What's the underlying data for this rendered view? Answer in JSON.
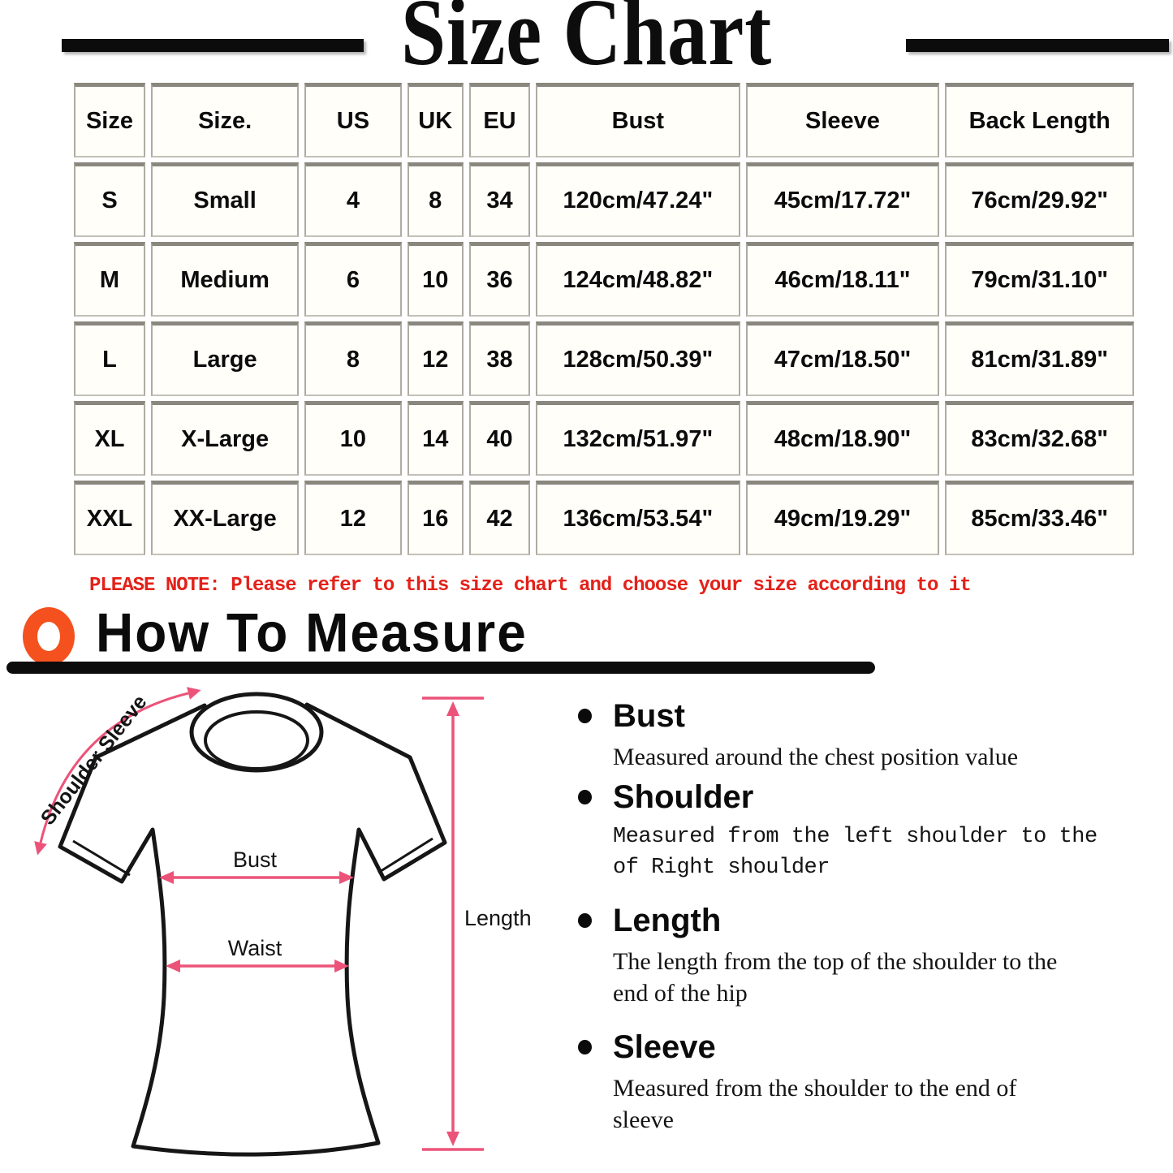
{
  "title": "Size Chart",
  "table": {
    "headers": [
      "Size",
      "Size.",
      "US",
      "UK",
      "EU",
      "Bust",
      "Sleeve",
      "Back Length"
    ],
    "rows": [
      [
        "S",
        "Small",
        "4",
        "8",
        "34",
        "120cm/47.24\"",
        "45cm/17.72\"",
        "76cm/29.92\""
      ],
      [
        "M",
        "Medium",
        "6",
        "10",
        "36",
        "124cm/48.82\"",
        "46cm/18.11\"",
        "79cm/31.10\""
      ],
      [
        "L",
        "Large",
        "8",
        "12",
        "38",
        "128cm/50.39\"",
        "47cm/18.50\"",
        "81cm/31.89\""
      ],
      [
        "XL",
        "X-Large",
        "10",
        "14",
        "40",
        "132cm/51.97\"",
        "48cm/18.90\"",
        "83cm/32.68\""
      ],
      [
        "XXL",
        "XX-Large",
        "12",
        "16",
        "42",
        "136cm/53.54\"",
        "49cm/19.29\"",
        "85cm/33.46\""
      ]
    ]
  },
  "note": "PLEASE NOTE: Please refer to this size chart and choose your size according to it",
  "measure": {
    "heading": "How To Measure",
    "items": [
      {
        "label": "Bust",
        "desc": "Measured around the chest position value"
      },
      {
        "label": "Shoulder",
        "desc": "Measured from the left shoulder to the of Right shoulder"
      },
      {
        "label": "Length",
        "desc": "The length from the top of the shoulder to the end of the hip"
      },
      {
        "label": "Sleeve",
        "desc": "Measured from the shoulder to the end of sleeve"
      }
    ]
  },
  "diagram": {
    "labels": {
      "shoulder_sleeve": "Shoulder Sleeve",
      "bust": "Bust",
      "waist": "Waist",
      "length": "Length"
    }
  },
  "colors": {
    "note_red": "#e32119",
    "ring_orange": "#f4511e",
    "arrow_pink": "#ec5379",
    "ink_black": "#0c0c0c"
  }
}
